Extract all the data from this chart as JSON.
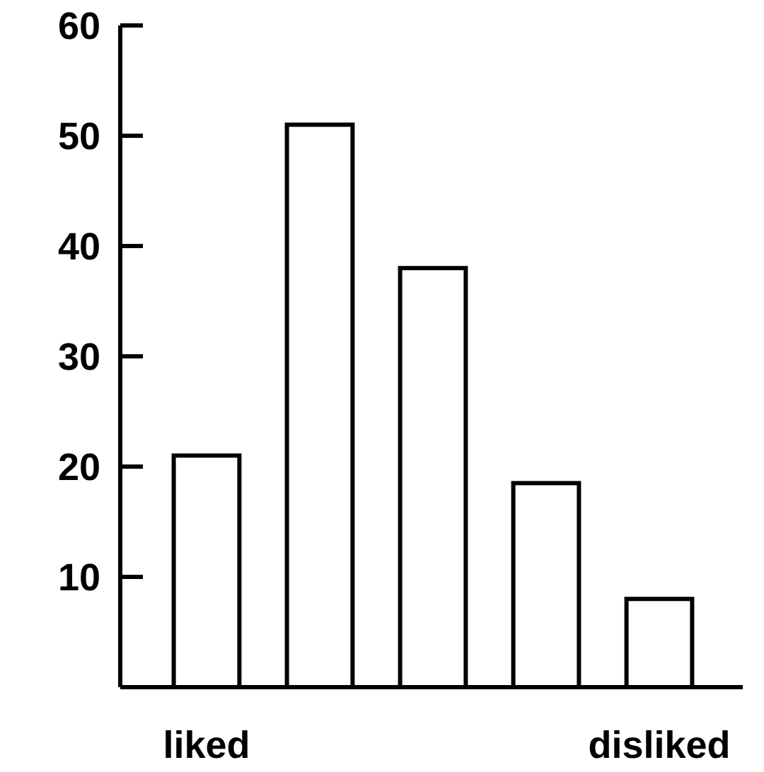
{
  "chart_data": {
    "type": "bar",
    "categories": [
      "liked",
      null,
      null,
      null,
      "disliked"
    ],
    "values": [
      21,
      51,
      38,
      18.5,
      8
    ],
    "color": "#ffffff",
    "ylim": [
      0,
      60
    ],
    "yticks": [
      10,
      20,
      30,
      40,
      50,
      60
    ],
    "grid": false
  }
}
